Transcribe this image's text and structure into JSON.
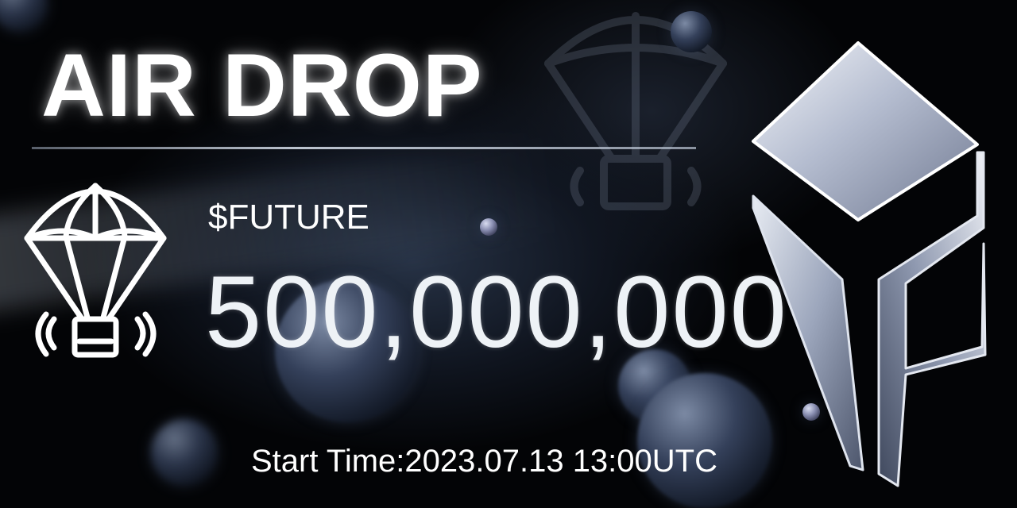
{
  "banner": {
    "title": "AIR DROP",
    "token": "$FUTURE",
    "amount": "500,000,000",
    "start_time": "Start Time:2023.07.13 13:00UTC"
  },
  "icons": {
    "parachute": "parachute-icon",
    "logo": "future-logo"
  },
  "colors": {
    "background": "#030406",
    "text": "#ffffff",
    "accent_orb": "#34405a"
  }
}
